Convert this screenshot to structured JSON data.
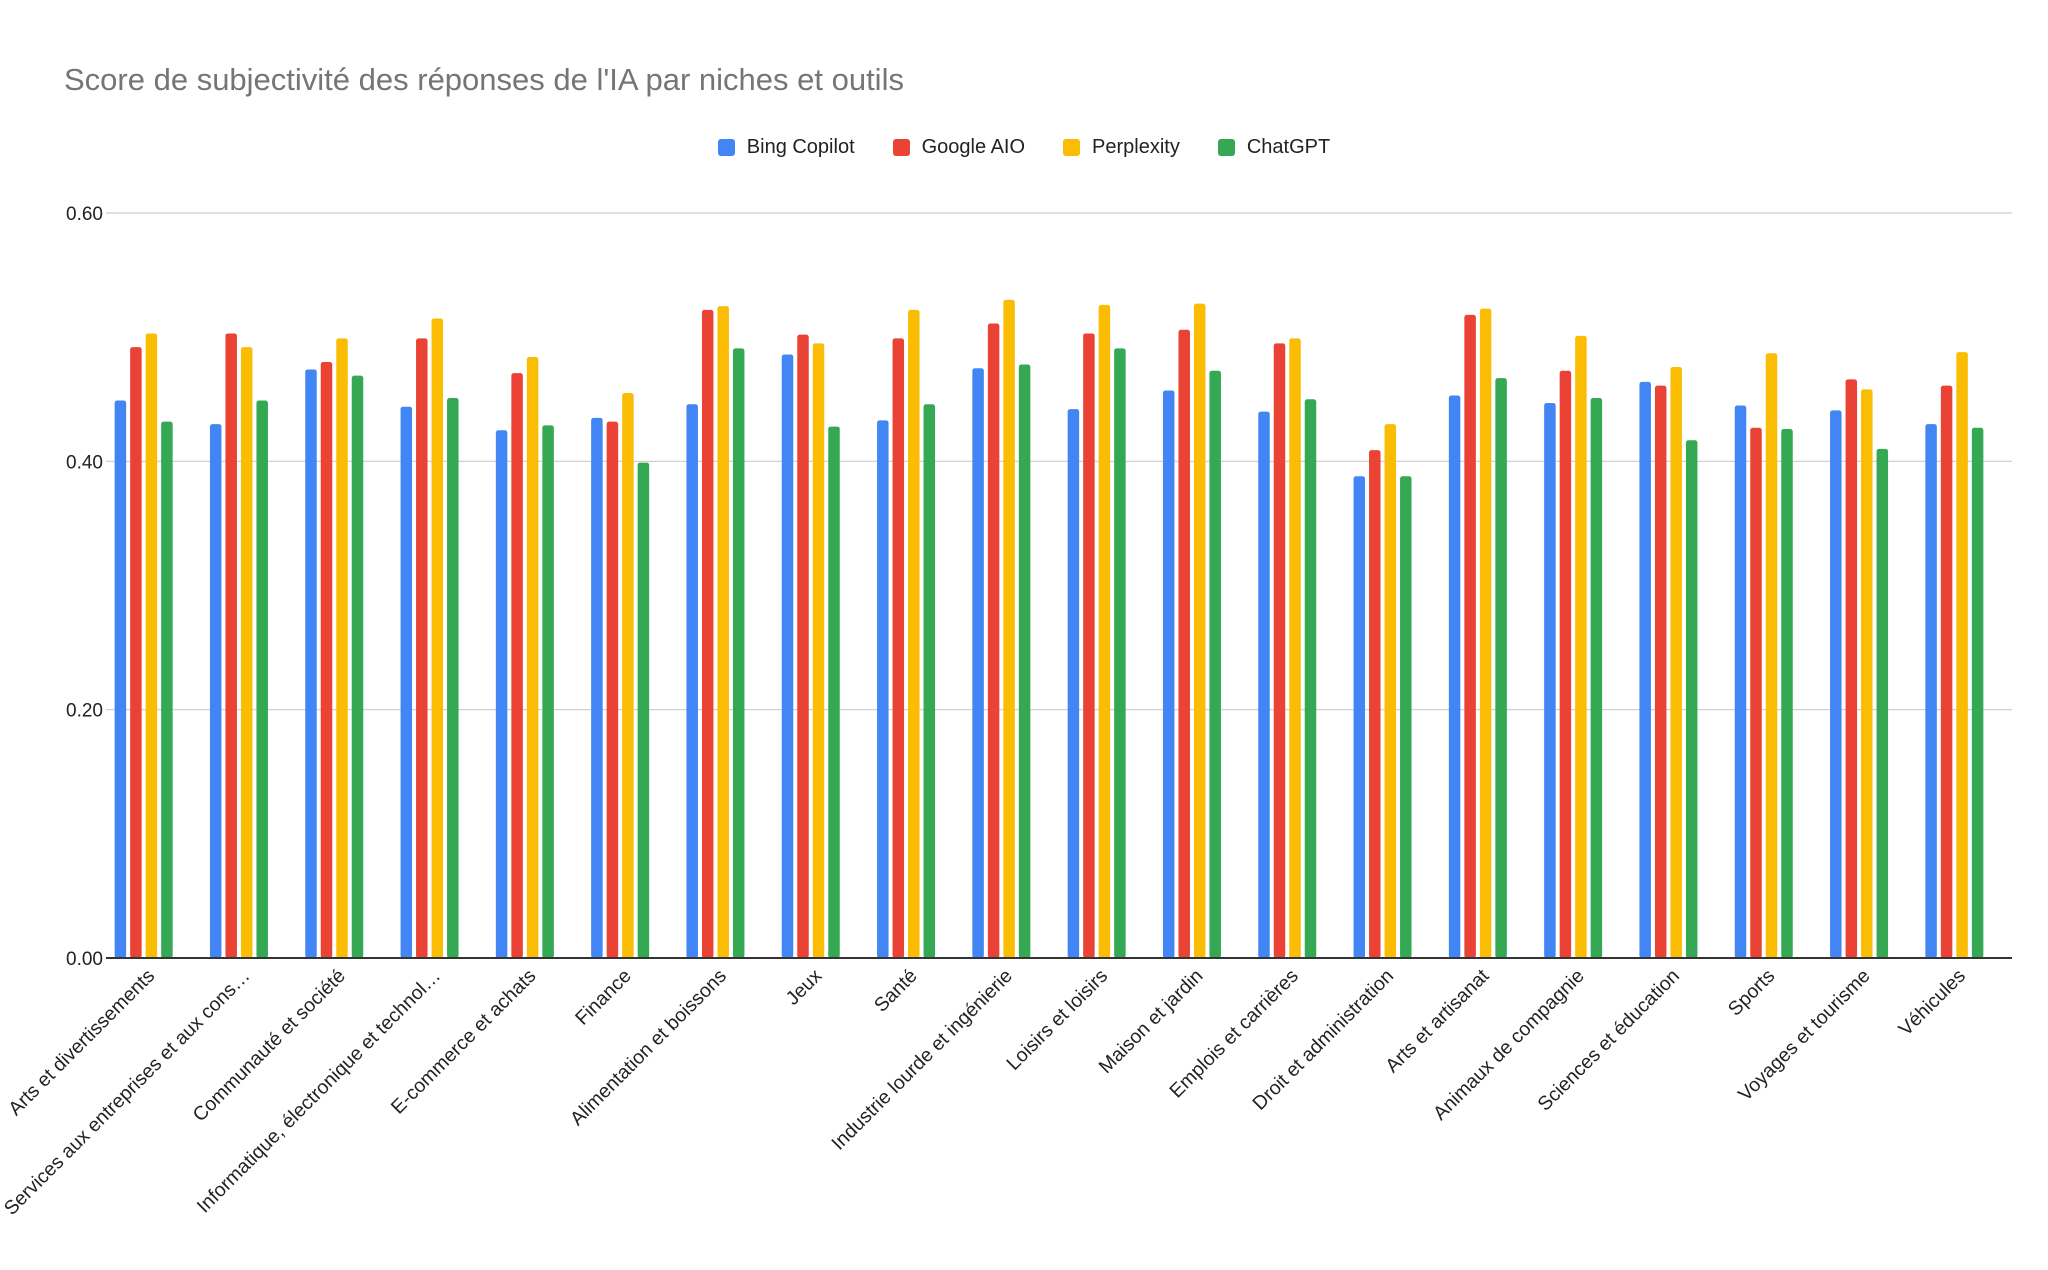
{
  "chart_data": {
    "type": "bar",
    "title": "Score de subjectivité des réponses de l'IA par niches et outils",
    "xlabel": "",
    "ylabel": "",
    "ylim": [
      0,
      0.6
    ],
    "yticks": [
      "0.00",
      "0.20",
      "0.40",
      "0.60"
    ],
    "grid": true,
    "legend_position": "top",
    "categories": [
      "Arts et divertissements",
      "Services aux entreprises et aux cons…",
      "Communauté et société",
      "Informatique, électronique et technol…",
      "E-commerce et achats",
      "Finance",
      "Alimentation et boissons",
      "Jeux",
      "Santé",
      "Industrie lourde et ingénierie",
      "Loisirs et loisirs",
      "Maison et jardin",
      "Emplois et carrières",
      "Droit et administration",
      "Arts et artisanat",
      "Animaux de compagnie",
      "Sciences et éducation",
      "Sports",
      "Voyages et tourisme",
      "Véhicules"
    ],
    "series": [
      {
        "name": "Bing Copilot",
        "color": "#4285f4",
        "values": [
          0.449,
          0.43,
          0.474,
          0.444,
          0.425,
          0.435,
          0.446,
          0.486,
          0.433,
          0.475,
          0.442,
          0.457,
          0.44,
          0.388,
          0.453,
          0.447,
          0.464,
          0.445,
          0.441,
          0.43
        ]
      },
      {
        "name": "Google AIO",
        "color": "#ea4335",
        "values": [
          0.492,
          0.503,
          0.48,
          0.499,
          0.471,
          0.432,
          0.522,
          0.502,
          0.499,
          0.511,
          0.503,
          0.506,
          0.495,
          0.409,
          0.518,
          0.473,
          0.461,
          0.427,
          0.466,
          0.461
        ]
      },
      {
        "name": "Perplexity",
        "color": "#fbbc04",
        "values": [
          0.503,
          0.492,
          0.499,
          0.515,
          0.484,
          0.455,
          0.525,
          0.495,
          0.522,
          0.53,
          0.526,
          0.527,
          0.499,
          0.43,
          0.523,
          0.501,
          0.476,
          0.487,
          0.458,
          0.488
        ]
      },
      {
        "name": "ChatGPT",
        "color": "#34a853",
        "values": [
          0.432,
          0.449,
          0.469,
          0.451,
          0.429,
          0.399,
          0.491,
          0.428,
          0.446,
          0.478,
          0.491,
          0.473,
          0.45,
          0.388,
          0.467,
          0.451,
          0.417,
          0.426,
          0.41,
          0.427
        ]
      }
    ]
  }
}
